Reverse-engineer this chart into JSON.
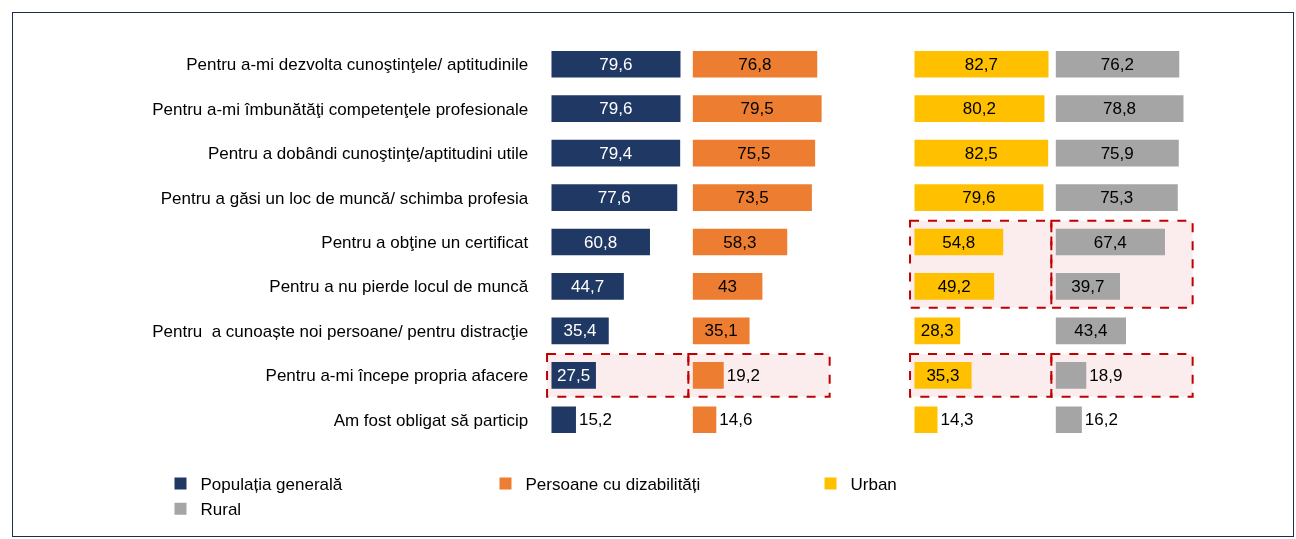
{
  "chart_data": [
    {
      "type": "bar",
      "orientation": "horizontal",
      "categories": [
        "Pentru a-mi dezvolta cunoştinţele/ aptitudinile",
        "Pentru a-mi îmbunătăţi competenţele profesionale",
        "Pentru a dobândi cunoştinţe/aptitudini utile",
        "Pentru a găsi un loc de muncă/ schimba profesia",
        "Pentru a obţine un certificat",
        "Pentru a nu pierde locul de muncă",
        "Pentru  a cunoaște noi persoane/ pentru distracţie",
        "Pentru a-mi începe propria afacere",
        "Am fost obligat să particip"
      ],
      "series": [
        {
          "name": "Populația generală",
          "color": "#203864",
          "values": [
            79.6,
            79.6,
            79.4,
            77.6,
            60.8,
            44.7,
            35.4,
            27.5,
            15.2
          ],
          "value_labels": [
            "79,6",
            "79,6",
            "79,4",
            "77,6",
            "60,8",
            "44,7",
            "35,4",
            "27,5",
            "15,2"
          ]
        }
      ],
      "tick_labels": "y",
      "legend": "bottom",
      "bands": [
        {
          "axis": "y",
          "from": "Pentru a-mi începe propria afacere",
          "to": "Pentru a-mi începe propria afacere",
          "color": "#c00000"
        }
      ]
    },
    {
      "type": "bar",
      "orientation": "horizontal",
      "categories": [
        "Pentru a-mi dezvolta cunoştinţele/ aptitudinile",
        "Pentru a-mi îmbunătăţi competenţele profesionale",
        "Pentru a dobândi cunoştinţe/aptitudini utile",
        "Pentru a găsi un loc de muncă/ schimba profesia",
        "Pentru a obţine un certificat",
        "Pentru a nu pierde locul de muncă",
        "Pentru  a cunoaște noi persoane/ pentru distracţie",
        "Pentru a-mi începe propria afacere",
        "Am fost obligat să particip"
      ],
      "series": [
        {
          "name": "Persoane cu dizabilități",
          "color": "#ed7d31",
          "values": [
            76.8,
            79.5,
            75.5,
            73.5,
            58.3,
            43,
            35.1,
            19.2,
            14.6
          ],
          "value_labels": [
            "76,8",
            "79,5",
            "75,5",
            "73,5",
            "58,3",
            "43",
            "35,1",
            "19,2",
            "14,6"
          ]
        }
      ],
      "tick_labels": false,
      "legend": "bottom",
      "bands": [
        {
          "axis": "y",
          "from": "Pentru a-mi începe propria afacere",
          "to": "Pentru a-mi începe propria afacere",
          "color": "#c00000"
        }
      ]
    },
    {
      "type": "bar",
      "orientation": "horizontal",
      "categories": [
        "Pentru a-mi dezvolta cunoştinţele/ aptitudinile",
        "Pentru a-mi îmbunătăţi competenţele profesionale",
        "Pentru a dobândi cunoştinţe/aptitudini utile",
        "Pentru a găsi un loc de muncă/ schimba profesia",
        "Pentru a obţine un certificat",
        "Pentru a nu pierde locul de muncă",
        "Pentru  a cunoaște noi persoane/ pentru distracţie",
        "Pentru a-mi începe propria afacere",
        "Am fost obligat să particip"
      ],
      "series": [
        {
          "name": "Urban",
          "color": "#ffc000",
          "values": [
            82.7,
            80.2,
            82.5,
            79.6,
            54.8,
            49.2,
            28.3,
            35.3,
            14.3
          ],
          "value_labels": [
            "82,7",
            "80,2",
            "82,5",
            "79,6",
            "54,8",
            "49,2",
            "28,3",
            "35,3",
            "14,3"
          ]
        }
      ],
      "tick_labels": false,
      "legend": "bottom",
      "bands": [
        {
          "axis": "y",
          "from": "Pentru a obţine un certificat",
          "to": "Pentru a nu pierde locul de muncă",
          "color": "#c00000"
        },
        {
          "axis": "y",
          "from": "Pentru a-mi începe propria afacere",
          "to": "Pentru a-mi începe propria afacere",
          "color": "#c00000"
        }
      ]
    },
    {
      "type": "bar",
      "orientation": "horizontal",
      "categories": [
        "Pentru a-mi dezvolta cunoştinţele/ aptitudinile",
        "Pentru a-mi îmbunătăţi competenţele profesionale",
        "Pentru a dobândi cunoştinţe/aptitudini utile",
        "Pentru a găsi un loc de muncă/ schimba profesia",
        "Pentru a obţine un certificat",
        "Pentru a nu pierde locul de muncă",
        "Pentru  a cunoaște noi persoane/ pentru distracţie",
        "Pentru a-mi începe propria afacere",
        "Am fost obligat să particip"
      ],
      "series": [
        {
          "name": "Rural",
          "color": "#a5a5a5",
          "values": [
            76.2,
            78.8,
            75.9,
            75.3,
            67.4,
            39.7,
            43.4,
            18.9,
            16.2
          ],
          "value_labels": [
            "76,2",
            "78,8",
            "75,9",
            "75,3",
            "67,4",
            "39,7",
            "43,4",
            "18,9",
            "16,2"
          ]
        }
      ],
      "tick_labels": false,
      "legend": "bottom",
      "bands": [
        {
          "axis": "y",
          "from": "Pentru a obţine un certificat",
          "to": "Pentru a nu pierde locul de muncă",
          "color": "#c00000"
        },
        {
          "axis": "y",
          "from": "Pentru a-mi începe propria afacere",
          "to": "Pentru a-mi începe propria afacere",
          "color": "#c00000"
        }
      ]
    }
  ]
}
